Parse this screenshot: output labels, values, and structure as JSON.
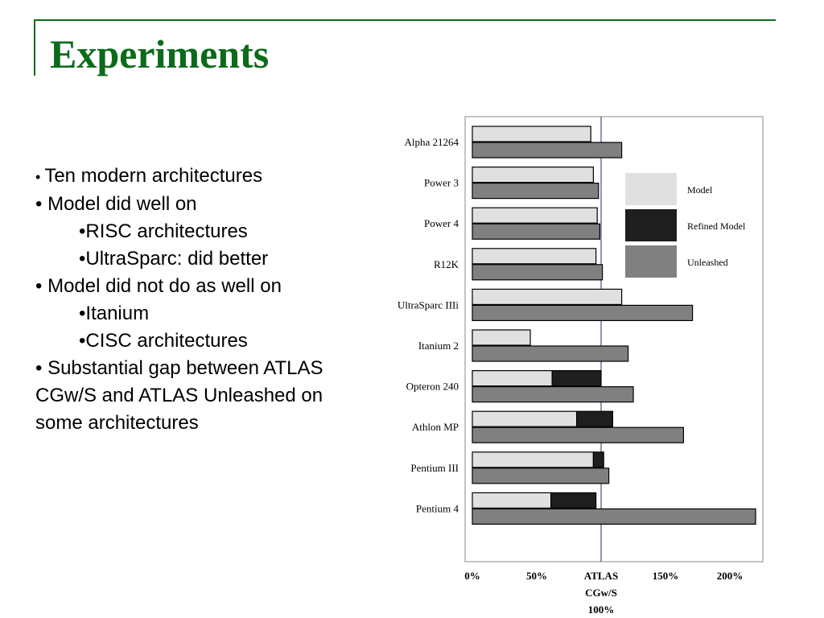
{
  "slide": {
    "title": "Experiments",
    "bullets": [
      {
        "text": "Ten modern architectures",
        "level": 0
      },
      {
        "text": "Model did well on",
        "level": 0
      },
      {
        "text": "•RISC architectures",
        "level": 1
      },
      {
        "text": "•UltraSparc: did better",
        "level": 1
      },
      {
        "text": "Model did not do as well on",
        "level": 0
      },
      {
        "text": "•Itanium",
        "level": 1
      },
      {
        "text": "•CISC architectures",
        "level": 1
      },
      {
        "text": "Substantial gap between ATLAS",
        "level": 0
      },
      {
        "text": "CGw/S and ATLAS Unleashed on",
        "level": 2
      },
      {
        "text": "some architectures",
        "level": 2
      }
    ]
  },
  "chart_data": {
    "type": "bar",
    "orientation": "horizontal",
    "stacked_first_bar": true,
    "categories": [
      "Alpha 21264",
      "Power 3",
      "Power 4",
      "R12K",
      "UltraSparc IIIi",
      "Itanium 2",
      "Opteron 240",
      "Athlon MP",
      "Pentium III",
      "Pentium 4"
    ],
    "series": [
      {
        "name": "Model",
        "color": "#e0e0e0",
        "values": [
          92,
          94,
          97,
          96,
          116,
          45,
          62,
          81,
          94,
          61
        ]
      },
      {
        "name": "Refined Model",
        "color": "#1e1e1e",
        "values": [
          0,
          0,
          0,
          0,
          0,
          0,
          38,
          28,
          8,
          35
        ]
      },
      {
        "name": "Unleashed",
        "color": "#808080",
        "values": [
          116,
          98,
          99,
          101,
          171,
          121,
          125,
          164,
          106,
          220
        ]
      }
    ],
    "xticks": [
      "0%",
      "50%",
      "ATLAS",
      "150%",
      "200%"
    ],
    "xtick_values": [
      0,
      50,
      100,
      150,
      200
    ],
    "reference_label": [
      "ATLAS",
      "CGw/S",
      "100%"
    ],
    "reference_value": 100,
    "xlim": [
      0,
      225
    ],
    "legend_position": "right-upper"
  }
}
